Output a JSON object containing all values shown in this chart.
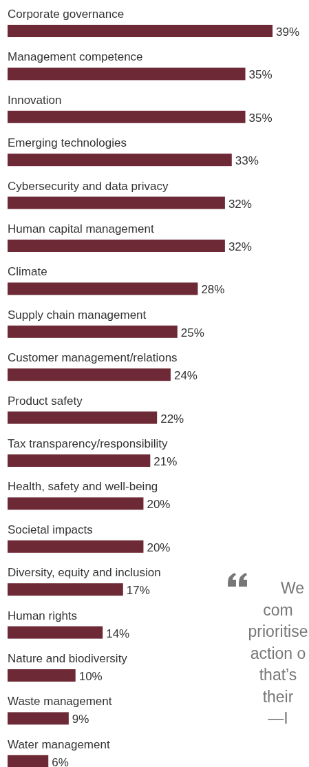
{
  "chart_data": {
    "type": "bar",
    "orientation": "horizontal",
    "categories": [
      "Corporate governance",
      "Management competence",
      "Innovation",
      "Emerging technologies",
      "Cybersecurity and data privacy",
      "Human capital management",
      "Climate",
      "Supply chain management",
      "Customer management/relations",
      "Product safety",
      "Tax transparency/responsibility",
      "Health, safety and well-being",
      "Societal impacts",
      "Diversity, equity and inclusion",
      "Human rights",
      "Nature and biodiversity",
      "Waste management",
      "Water management"
    ],
    "values": [
      39,
      35,
      35,
      33,
      32,
      32,
      28,
      25,
      24,
      22,
      21,
      20,
      20,
      17,
      14,
      10,
      9,
      6
    ],
    "value_labels": [
      "39%",
      "35%",
      "35%",
      "33%",
      "32%",
      "32%",
      "28%",
      "25%",
      "24%",
      "22%",
      "21%",
      "20%",
      "20%",
      "17%",
      "14%",
      "10%",
      "9%",
      "6%"
    ],
    "color": "#6d2935",
    "annotations": [
      "We\ncom\nprioritise\naction o\nthat’s\ntheir\n—I"
    ]
  }
}
